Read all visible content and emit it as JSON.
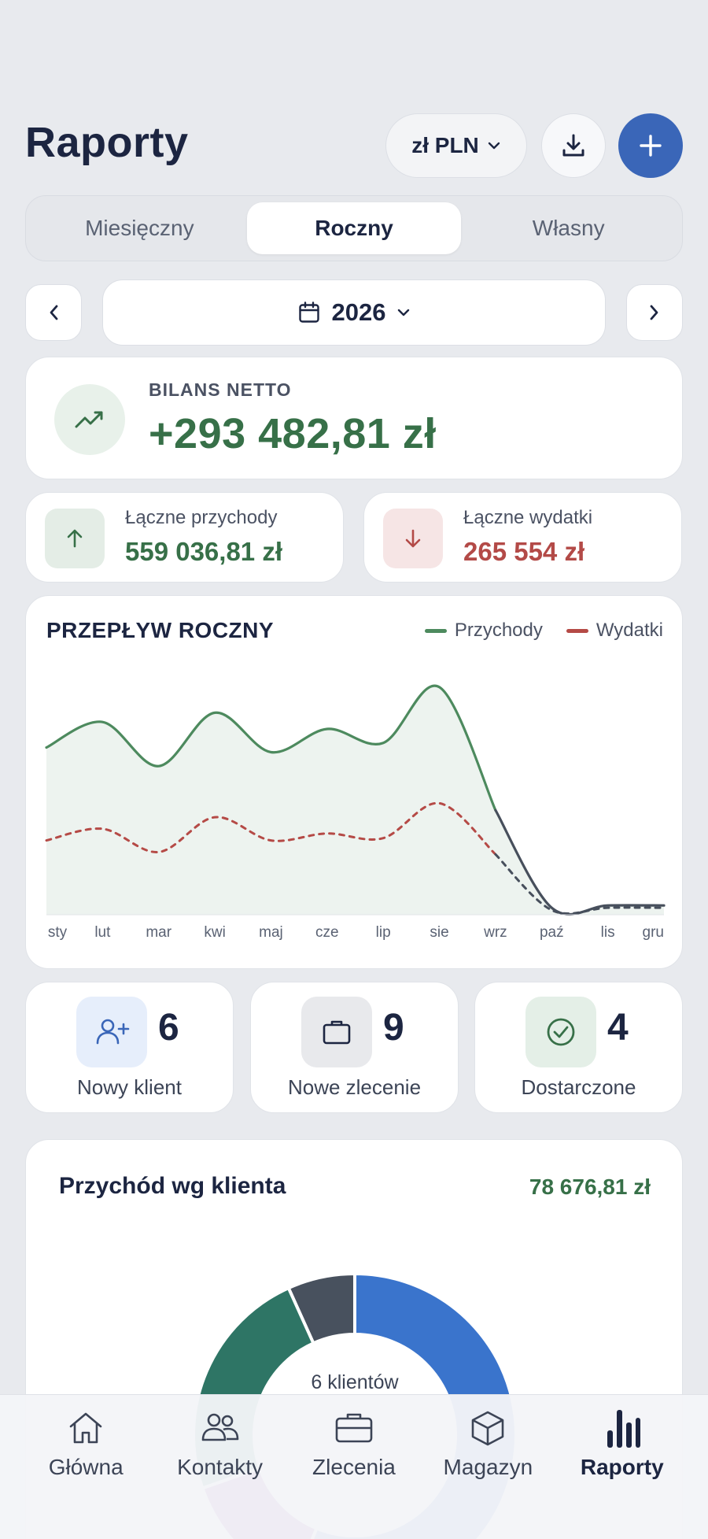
{
  "header": {
    "title": "Raporty",
    "currency_label": "zł PLN"
  },
  "tabs": [
    "Miesięczny",
    "Roczny",
    "Własny"
  ],
  "active_tab": "Roczny",
  "date_selector": {
    "year": "2026"
  },
  "balance": {
    "label": "BILANS NETTO",
    "value": "+293 482,81 zł"
  },
  "income": {
    "label": "Łączne przychody",
    "value": "559 036,81 zł"
  },
  "expenses": {
    "label": "Łączne wydatki",
    "value": "265 554 zł"
  },
  "flow_chart": {
    "title": "PRZEPŁYW ROCZNY",
    "legend": {
      "income": "Przychody",
      "expenses": "Wydatki"
    }
  },
  "chart_data": {
    "type": "line",
    "title": "PRZEPŁYW ROCZNY",
    "categories": [
      "sty",
      "lut",
      "mar",
      "kwi",
      "maj",
      "cze",
      "lip",
      "sie",
      "wrz",
      "paź",
      "lis",
      "gru"
    ],
    "series": [
      {
        "name": "Przychody",
        "values": [
          72,
          83,
          64,
          87,
          70,
          80,
          74,
          98,
          45,
          3,
          4,
          4
        ]
      },
      {
        "name": "Wydatki",
        "values": [
          32,
          37,
          27,
          42,
          32,
          35,
          33,
          48,
          26,
          2,
          3,
          3
        ]
      }
    ],
    "colors": {
      "Przychody": "#4d8a5e",
      "Wydatki": "#b54a46",
      "forecast": "#474f5c"
    }
  },
  "quick_stats": [
    {
      "label": "Nowy klient",
      "count": "6"
    },
    {
      "label": "Nowe zlecenie",
      "count": "9"
    },
    {
      "label": "Dostarczone",
      "count": "4"
    }
  ],
  "client_revenue": {
    "title": "Przychód wg klienta",
    "total": "78 676,81 zł",
    "center_label": "6 klientów",
    "segments": [
      {
        "value": 50,
        "color": "#3a74cc"
      },
      {
        "value": 12,
        "color": "#7a2a9e"
      },
      {
        "value": 21,
        "color": "#2e7565"
      },
      {
        "value": 6,
        "color": "#48515e"
      }
    ]
  },
  "tabbar": [
    {
      "label": "Główna",
      "icon": "home-icon"
    },
    {
      "label": "Kontakty",
      "icon": "contacts-icon"
    },
    {
      "label": "Zlecenia",
      "icon": "briefcase-icon"
    },
    {
      "label": "Magazyn",
      "icon": "box-icon"
    },
    {
      "label": "Raporty",
      "icon": "bar-chart-icon"
    }
  ]
}
